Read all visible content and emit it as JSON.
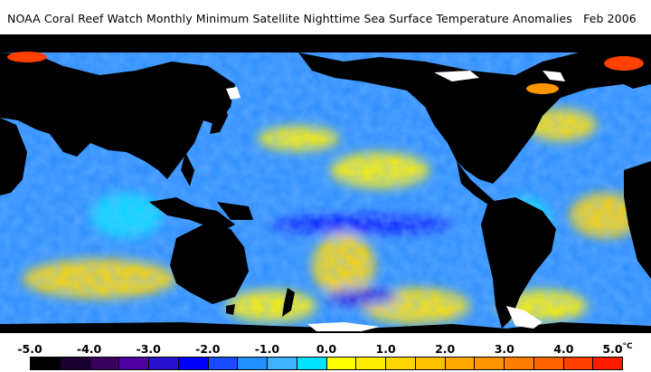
{
  "title": "NOAA Coral Reef Watch Monthly Minimum Satellite Nighttime Sea Surface Temperature Anomalies",
  "date": "Feb 2006",
  "colorbar": {
    "labels": [
      "-5.0",
      "-4.0",
      "-3.0",
      "-2.0",
      "-1.0",
      "0.0",
      "1.0",
      "2.0",
      "3.0",
      "4.0",
      "5.0"
    ],
    "unit": "°C",
    "colors": [
      "#000000",
      "#1a0030",
      "#3a0060",
      "#4f00a0",
      "#2a10d0",
      "#0000ff",
      "#1a4cff",
      "#1e90ff",
      "#3fb2ff",
      "#00e5ff",
      "#ffff00",
      "#ffee00",
      "#ffd400",
      "#ffc000",
      "#ffa800",
      "#ff9600",
      "#ff7e00",
      "#ff6400",
      "#ff4000",
      "#ff1a00"
    ]
  },
  "colors": {
    "land": "#000000",
    "ice": "#ffffff",
    "ocean_base": "#2a8cff"
  }
}
